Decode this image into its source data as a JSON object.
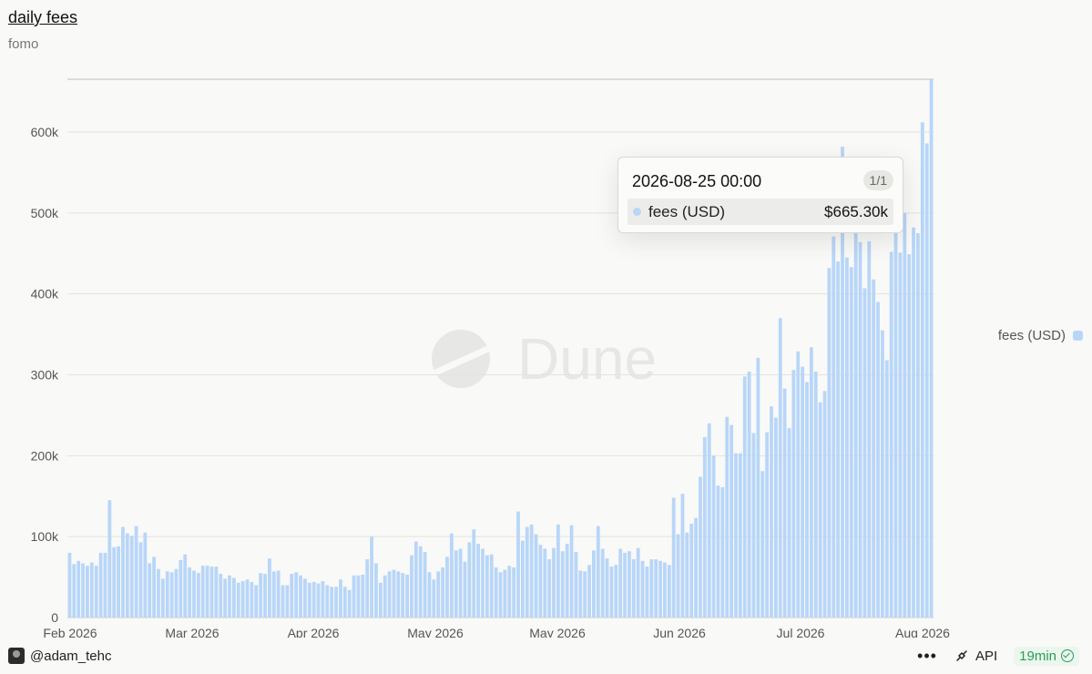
{
  "header": {
    "title": "daily fees",
    "subtitle": "fomo"
  },
  "watermark": "Dune",
  "legend": {
    "label": "fees (USD)"
  },
  "tooltip": {
    "date": "2026-08-25 00:00",
    "page": "1/1",
    "series_label": "fees (USD)",
    "value": "$665.30k"
  },
  "footer": {
    "author": "@adam_tehc",
    "more": "•••",
    "api_label": "API",
    "freshness": "19min"
  },
  "colors": {
    "bar": "#b8d6f8",
    "accent_green": "#2f9a57"
  },
  "chart_data": {
    "type": "bar",
    "ylim": [
      0,
      665300
    ],
    "yticks": [
      0,
      100000,
      200000,
      300000,
      400000,
      500000,
      600000
    ],
    "ytick_labels": [
      "0",
      "100k",
      "200k",
      "300k",
      "400k",
      "500k",
      "600k"
    ],
    "xtick_labels": [
      "Feb 2026",
      "Mar 2026",
      "Apr 2026",
      "May 2026",
      "May 2026",
      "Jun 2026",
      "Jul 2026",
      "Aug 2026"
    ],
    "legend_position": "right",
    "grid": true,
    "series": [
      {
        "name": "fees (USD)",
        "values": [
          80000,
          66000,
          70000,
          67000,
          64000,
          68000,
          64000,
          80000,
          80000,
          145000,
          87000,
          88000,
          112000,
          104000,
          101000,
          113000,
          93000,
          105000,
          67000,
          75000,
          60000,
          48000,
          57000,
          56000,
          60000,
          71000,
          78000,
          62000,
          58000,
          55000,
          64000,
          64000,
          63000,
          63000,
          54000,
          48000,
          52000,
          49000,
          43000,
          45000,
          47000,
          44000,
          40000,
          55000,
          54000,
          73000,
          57000,
          58000,
          40000,
          40000,
          54000,
          56000,
          52000,
          48000,
          43000,
          44000,
          42000,
          45000,
          40000,
          38000,
          38000,
          47000,
          38000,
          34000,
          52000,
          52000,
          53000,
          72000,
          100000,
          67000,
          43000,
          52000,
          57000,
          59000,
          57000,
          55000,
          53000,
          77000,
          94000,
          88000,
          81000,
          56000,
          47000,
          57000,
          62000,
          75000,
          104000,
          83000,
          85000,
          69000,
          93000,
          109000,
          91000,
          85000,
          77000,
          78000,
          62000,
          56000,
          59000,
          64000,
          62000,
          131000,
          95000,
          112000,
          115000,
          103000,
          90000,
          85000,
          72000,
          86000,
          115000,
          82000,
          91000,
          114000,
          81000,
          58000,
          57000,
          65000,
          83000,
          113000,
          85000,
          73000,
          63000,
          65000,
          85000,
          80000,
          82000,
          72000,
          86000,
          70000,
          63000,
          72000,
          72000,
          70000,
          68000,
          65000,
          148000,
          103000,
          153000,
          105000,
          116000,
          123000,
          174000,
          223000,
          240000,
          200000,
          163000,
          161000,
          248000,
          238000,
          203000,
          203000,
          298000,
          304000,
          228000,
          321000,
          181000,
          229000,
          261000,
          247000,
          370000,
          283000,
          234000,
          306000,
          329000,
          310000,
          291000,
          334000,
          304000,
          266000,
          280000,
          432000,
          471000,
          440000,
          582000,
          445000,
          433000,
          493000,
          464000,
          407000,
          465000,
          418000,
          390000,
          355000,
          318000,
          452000,
          477000,
          451000,
          500000,
          449000,
          482000,
          475000,
          612000,
          586000,
          665300
        ]
      }
    ]
  }
}
